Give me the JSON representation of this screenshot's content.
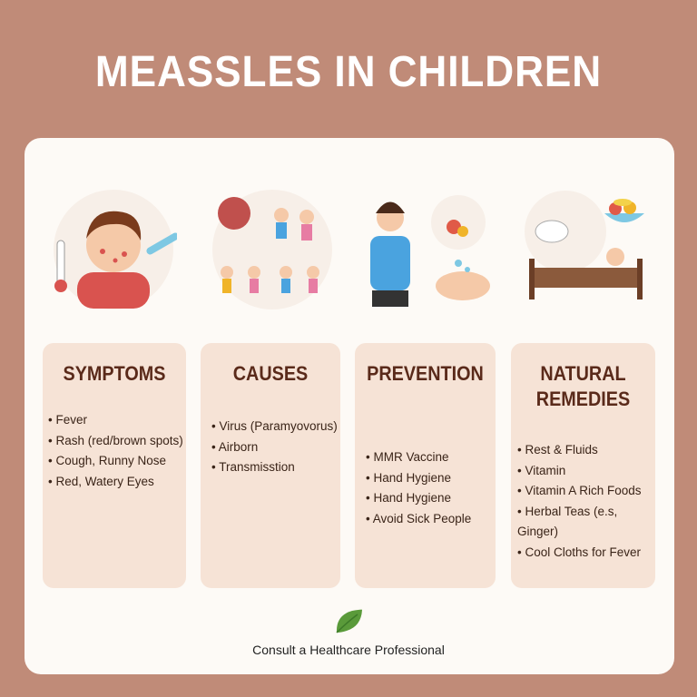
{
  "title": "MEASSLES IN CHILDREN",
  "illustrations": [
    "sick-child-with-thermometer",
    "virus-and-children-playing",
    "vaccination-and-handwashing",
    "rest-and-healthy-food"
  ],
  "columns": [
    {
      "heading": "SYMPTOMS",
      "items": [
        "Fever",
        "Rash (red/brown spots)",
        "Cough, Runny Nose",
        "Red, Watery Eyes"
      ]
    },
    {
      "heading": "CAUSES",
      "items": [
        "Virus (Paramyovorus)",
        "Airborn",
        "Transmisstion"
      ]
    },
    {
      "heading": "PREVENTION",
      "items": [
        "MMR Vaccine",
        "Hand Hygiene",
        "Hand Hygiene",
        "Avoid Sick People"
      ]
    },
    {
      "heading": "NATURAL REMEDIES",
      "items": [
        "Rest & Fluids",
        "Vitamin",
        "Vitamin A Rich Foods",
        "Herbal Teas (e.s, Ginger)",
        "Cool Cloths for Fever"
      ]
    }
  ],
  "footer": "Consult a Healthcare Professional",
  "colors": {
    "background": "#c08b78",
    "card": "#fdfaf6",
    "column": "#f6e3d6",
    "heading": "#5a2a1a",
    "leaf": "#5a9a3a"
  }
}
